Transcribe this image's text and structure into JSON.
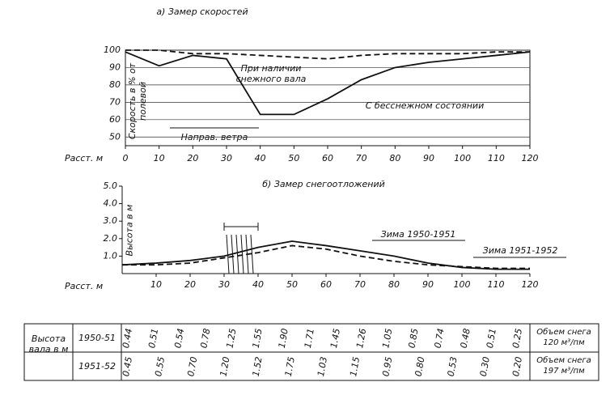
{
  "chart_data": [
    {
      "type": "line",
      "title": "а) Замер скоростей",
      "ylabel": "Скорость в % от полевой",
      "xlabel": "Расст. м",
      "annotation": "Направ. ветра",
      "x": [
        0,
        10,
        20,
        30,
        40,
        50,
        60,
        70,
        80,
        90,
        100,
        110,
        120
      ],
      "series": [
        {
          "name": "При наличии снежного вала",
          "color": "#111",
          "style": "solid",
          "values": [
            99,
            91,
            97,
            95,
            63,
            63,
            72,
            83,
            90,
            93,
            95,
            97,
            99
          ]
        },
        {
          "name": "С бесснежном состоянии",
          "color": "#111",
          "style": "dashed",
          "values": [
            100,
            100,
            98,
            98,
            97,
            96,
            95,
            97,
            98,
            98,
            98,
            99,
            99
          ]
        }
      ],
      "xlim": [
        0,
        120
      ],
      "xticks": [
        0,
        10,
        20,
        30,
        40,
        50,
        60,
        70,
        80,
        90,
        100,
        110,
        120
      ],
      "ylim": [
        45,
        100
      ],
      "yticks": [
        100,
        90,
        80,
        70,
        60,
        50
      ],
      "grid": true
    },
    {
      "type": "line",
      "title": "б) Замер снегоотложений",
      "ylabel": "Высота в м",
      "xlabel": "Расст. м",
      "x": [
        0,
        10,
        20,
        30,
        40,
        50,
        60,
        70,
        80,
        90,
        100,
        110,
        120
      ],
      "series": [
        {
          "name": "Зима 1950-1951",
          "color": "#111",
          "style": "solid",
          "values": [
            0.5,
            0.6,
            0.75,
            1.0,
            1.5,
            1.85,
            1.6,
            1.3,
            1.0,
            0.6,
            0.35,
            0.25,
            0.25
          ]
        },
        {
          "name": "Зима 1951-1952",
          "color": "#111",
          "style": "dashed",
          "values": [
            0.5,
            0.5,
            0.6,
            0.9,
            1.2,
            1.6,
            1.4,
            1.0,
            0.7,
            0.5,
            0.4,
            0.3,
            0.3
          ]
        }
      ],
      "xlim": [
        0,
        120
      ],
      "xticks": [
        10,
        20,
        30,
        40,
        50,
        60,
        70,
        80,
        90,
        100,
        110,
        120
      ],
      "ylim": [
        0,
        5
      ],
      "yticks": [
        {
          "value": 5,
          "label": "5.0"
        },
        {
          "value": 4,
          "label": "4.0"
        },
        {
          "value": 3,
          "label": "3.0"
        },
        {
          "value": 2,
          "label": "2.0"
        },
        {
          "value": 1,
          "label": "1.0"
        }
      ],
      "grid": false
    }
  ],
  "table": {
    "header": "Высота вала в м",
    "rows": [
      {
        "year": "1950-51",
        "values": [
          "0.44",
          "0.51",
          "0.54",
          "0.78",
          "1.25",
          "1.55",
          "1.90",
          "1.71",
          "1.45",
          "1.26",
          "1.05",
          "0.85",
          "0.74",
          "0.48",
          "0.51",
          "0.25"
        ],
        "volume": "Объем снега 120 м³/пм"
      },
      {
        "year": "1951-52",
        "values": [
          "0.45",
          "0.55",
          "0.70",
          "1.20",
          "1.52",
          "1.75",
          "1.03",
          "1.15",
          "0.95",
          "0.80",
          "0.53",
          "0.30",
          "0.20"
        ],
        "volume": "Объем снега 197 м³/пм"
      }
    ]
  }
}
